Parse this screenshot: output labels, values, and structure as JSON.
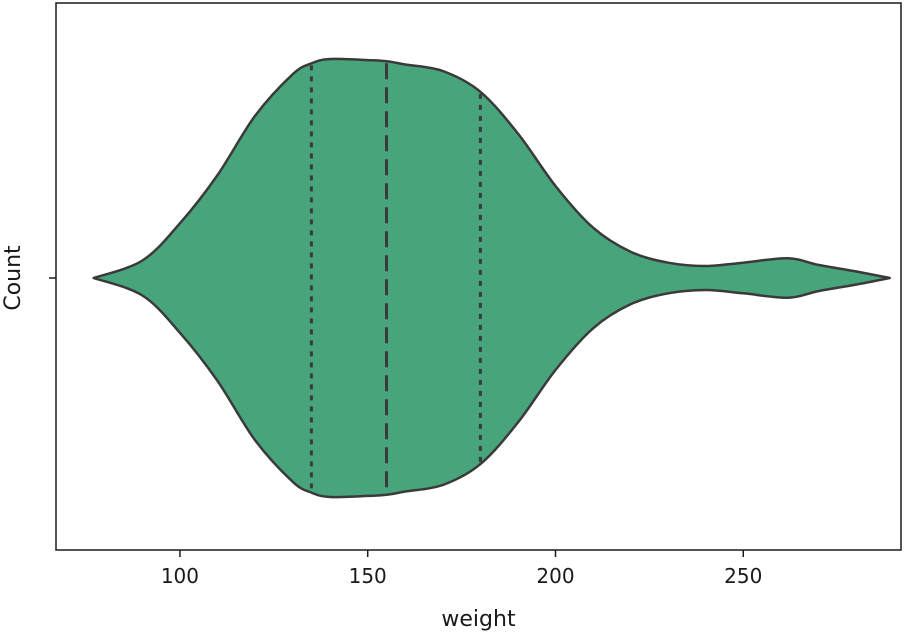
{
  "chart_data": {
    "type": "violin",
    "orientation": "horizontal",
    "title": "",
    "xlabel": "weight",
    "ylabel": "Count",
    "xlim": [
      67,
      292
    ],
    "xticks": [
      100,
      150,
      200,
      250
    ],
    "grid": false,
    "legend": "none",
    "fill_color": "#48a57b",
    "edge_color": "#3a3a3a",
    "quartiles": {
      "q1": 135,
      "median": 155,
      "q3": 180
    },
    "density": {
      "x": [
        77,
        90,
        100,
        110,
        120,
        130,
        135,
        140,
        150,
        155,
        160,
        170,
        180,
        190,
        200,
        210,
        220,
        230,
        240,
        250,
        262,
        270,
        280,
        289
      ],
      "half_width": [
        0.0,
        0.08,
        0.25,
        0.47,
        0.74,
        0.93,
        0.98,
        1.0,
        0.995,
        0.99,
        0.975,
        0.945,
        0.85,
        0.66,
        0.42,
        0.23,
        0.12,
        0.07,
        0.055,
        0.07,
        0.09,
        0.06,
        0.03,
        0.0
      ]
    }
  }
}
